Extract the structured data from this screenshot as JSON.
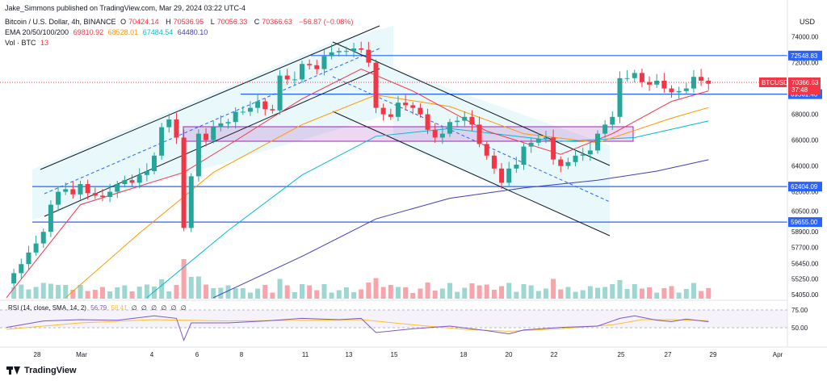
{
  "header": {
    "publisher": "Jake_Simmons published on TradingView.com, Mar 29, 2024 03:22 UTC-4",
    "symbol": "Bitcoin / U.S. Dollar, 4h, BINANCE",
    "o_label": "O",
    "o_value": "70424.14",
    "h_label": "H",
    "h_value": "70536.95",
    "l_label": "L",
    "l_value": "70056.33",
    "c_label": "C",
    "c_value": "70366.63",
    "change": "−56.87 (−0.08%)",
    "ema_label": "EMA 20/50/100/200",
    "ema20": "69810.92",
    "ema50": "68528.01",
    "ema100": "67484.54",
    "ema200": "64480.10",
    "vol_label": "Vol · BTC",
    "vol_value": "13"
  },
  "rsi_header": {
    "label": "RSI (14, close, SMA, 14, 2)",
    "rsi": "56.79",
    "sma": "58.41",
    "na1": "∅",
    "na2": "∅",
    "na3": "∅",
    "na4": "∅",
    "na5": "∅",
    "na6": "∅"
  },
  "currency": "USD",
  "footer": {
    "brand": "TradingView"
  },
  "colors": {
    "up": "#26a69a",
    "down": "#f23645",
    "ema20": "#f23645",
    "ema50": "#ff9800",
    "ema100": "#00bcd4",
    "ema200": "#3f3fb5",
    "hline": "#2962ff",
    "rsi": "#7e57c2",
    "rsi_sma": "#fbc02d",
    "box": "#9c27b0",
    "channel": "#e0f7fa"
  },
  "chart_data": {
    "type": "candlestick",
    "symbol": "BTCUSD",
    "interval": "4h",
    "x_ticks": [
      "28",
      "Mar",
      "4",
      "6",
      "8",
      "11",
      "13",
      "15",
      "18",
      "20",
      "22",
      "25",
      "27",
      "29",
      "Apr"
    ],
    "y_ticks": [
      74000,
      72000,
      70000,
      68000,
      66000,
      64000,
      62000,
      60500,
      58900,
      57700,
      56450,
      55250,
      54050
    ],
    "ylim": [
      53600,
      75600
    ],
    "horizontal_levels": [
      {
        "label": "72548.83",
        "value": 72548.83
      },
      {
        "label": "69561.40",
        "value": 69561.4
      },
      {
        "label": "62404.09",
        "value": 62404.09
      },
      {
        "label": "59655.00",
        "value": 59655.0
      }
    ],
    "last_price": {
      "ticker": "BTCUSD",
      "value": "70366.63",
      "countdown": "37:48"
    },
    "close_path": [
      [
        0,
        54900
      ],
      [
        1,
        55700
      ],
      [
        2,
        56400
      ],
      [
        3,
        57300
      ],
      [
        4,
        58000
      ],
      [
        5,
        58900
      ],
      [
        6,
        61000
      ],
      [
        7,
        62000
      ],
      [
        8,
        62200
      ],
      [
        9,
        61800
      ],
      [
        10,
        62600
      ],
      [
        11,
        61900
      ],
      [
        12,
        61700
      ],
      [
        13,
        61600
      ],
      [
        14,
        62000
      ],
      [
        15,
        62600
      ],
      [
        16,
        62900
      ],
      [
        17,
        62700
      ],
      [
        18,
        63300
      ],
      [
        19,
        63600
      ],
      [
        20,
        64800
      ],
      [
        21,
        67000
      ],
      [
        22,
        67600
      ],
      [
        23,
        66200
      ],
      [
        24,
        59200
      ],
      [
        25,
        63200
      ],
      [
        26,
        66500
      ],
      [
        27,
        66000
      ],
      [
        28,
        67000
      ],
      [
        29,
        67300
      ],
      [
        30,
        67400
      ],
      [
        31,
        68200
      ],
      [
        32,
        68200
      ],
      [
        33,
        68500
      ],
      [
        34,
        69000
      ],
      [
        35,
        68400
      ],
      [
        36,
        68300
      ],
      [
        37,
        71000
      ],
      [
        38,
        70700
      ],
      [
        39,
        70700
      ],
      [
        40,
        71900
      ],
      [
        41,
        71800
      ],
      [
        42,
        71500
      ],
      [
        43,
        72500
      ],
      [
        44,
        72800
      ],
      [
        45,
        72900
      ],
      [
        46,
        72900
      ],
      [
        47,
        73100
      ],
      [
        48,
        73000
      ],
      [
        49,
        72000
      ],
      [
        50,
        68500
      ],
      [
        51,
        68000
      ],
      [
        52,
        67800
      ],
      [
        53,
        68900
      ],
      [
        54,
        68700
      ],
      [
        55,
        68500
      ],
      [
        56,
        68000
      ],
      [
        57,
        66800
      ],
      [
        58,
        66200
      ],
      [
        59,
        66500
      ],
      [
        60,
        67400
      ],
      [
        61,
        67500
      ],
      [
        62,
        67800
      ],
      [
        63,
        67200
      ],
      [
        64,
        65700
      ],
      [
        65,
        64800
      ],
      [
        66,
        63800
      ],
      [
        67,
        62700
      ],
      [
        68,
        63800
      ],
      [
        69,
        64100
      ],
      [
        70,
        65500
      ],
      [
        71,
        65800
      ],
      [
        72,
        66100
      ],
      [
        73,
        66200
      ],
      [
        74,
        64500
      ],
      [
        75,
        64000
      ],
      [
        76,
        64300
      ],
      [
        77,
        64800
      ],
      [
        78,
        64900
      ],
      [
        79,
        65200
      ],
      [
        80,
        66500
      ],
      [
        81,
        67200
      ],
      [
        82,
        67800
      ],
      [
        83,
        70800
      ],
      [
        84,
        70800
      ],
      [
        85,
        71200
      ],
      [
        86,
        70500
      ],
      [
        87,
        70300
      ],
      [
        88,
        70600
      ],
      [
        89,
        70000
      ],
      [
        90,
        69700
      ],
      [
        91,
        69800
      ],
      [
        92,
        70000
      ],
      [
        93,
        70900
      ],
      [
        94,
        70600
      ],
      [
        95,
        70366
      ]
    ],
    "ema20_path": [
      [
        0,
        53800
      ],
      [
        10,
        61000
      ],
      [
        20,
        62800
      ],
      [
        24,
        63500
      ],
      [
        30,
        65600
      ],
      [
        40,
        69200
      ],
      [
        48,
        71500
      ],
      [
        55,
        69800
      ],
      [
        65,
        66700
      ],
      [
        75,
        64900
      ],
      [
        82,
        66500
      ],
      [
        90,
        69000
      ],
      [
        95,
        69810
      ]
    ],
    "ema50_path": [
      [
        8,
        53800
      ],
      [
        18,
        58800
      ],
      [
        28,
        63500
      ],
      [
        40,
        67200
      ],
      [
        50,
        69500
      ],
      [
        60,
        68600
      ],
      [
        70,
        66500
      ],
      [
        80,
        65800
      ],
      [
        90,
        67700
      ],
      [
        95,
        68528
      ]
    ],
    "ema100_path": [
      [
        19,
        53800
      ],
      [
        30,
        59000
      ],
      [
        40,
        63300
      ],
      [
        50,
        66300
      ],
      [
        60,
        66900
      ],
      [
        75,
        65900
      ],
      [
        85,
        66200
      ],
      [
        95,
        67484
      ]
    ],
    "ema200_path": [
      [
        28,
        53800
      ],
      [
        40,
        57000
      ],
      [
        50,
        59900
      ],
      [
        60,
        61500
      ],
      [
        70,
        62300
      ],
      [
        80,
        62900
      ],
      [
        88,
        63600
      ],
      [
        95,
        64480
      ]
    ],
    "volume_note": "Vol · BTC histogram bars",
    "rsi": {
      "label": "RSI (14, close, SMA, 14, 2)",
      "levels": [
        75,
        50
      ],
      "last_rsi": 56.79,
      "last_sma": 58.41,
      "path": [
        [
          0,
          48
        ],
        [
          5,
          58
        ],
        [
          10,
          60
        ],
        [
          15,
          59
        ],
        [
          20,
          66
        ],
        [
          23,
          62
        ],
        [
          24,
          28
        ],
        [
          25,
          55
        ],
        [
          30,
          55
        ],
        [
          35,
          58
        ],
        [
          40,
          62
        ],
        [
          45,
          60
        ],
        [
          48,
          62
        ],
        [
          50,
          40
        ],
        [
          55,
          46
        ],
        [
          60,
          50
        ],
        [
          65,
          43
        ],
        [
          68,
          38
        ],
        [
          70,
          44
        ],
        [
          75,
          48
        ],
        [
          80,
          50
        ],
        [
          83,
          62
        ],
        [
          85,
          66
        ],
        [
          88,
          59
        ],
        [
          90,
          57
        ],
        [
          92,
          61
        ],
        [
          95,
          56.79
        ]
      ],
      "sma_path": [
        [
          0,
          45
        ],
        [
          10,
          55
        ],
        [
          20,
          60
        ],
        [
          30,
          58
        ],
        [
          40,
          59
        ],
        [
          48,
          60
        ],
        [
          55,
          52
        ],
        [
          62,
          45
        ],
        [
          68,
          42
        ],
        [
          75,
          46
        ],
        [
          82,
          52
        ],
        [
          86,
          60
        ],
        [
          90,
          60
        ],
        [
          95,
          58.41
        ]
      ]
    }
  }
}
